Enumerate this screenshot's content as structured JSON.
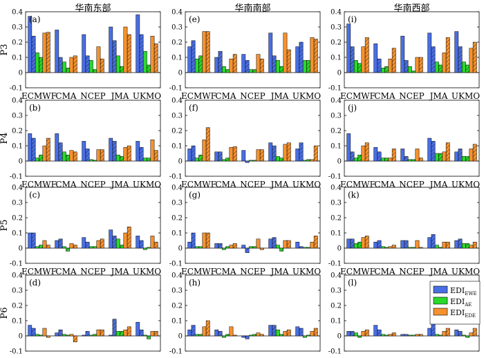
{
  "figure": {
    "column_titles": [
      "华南东部",
      "华南南部",
      "华南西部"
    ],
    "row_labels": [
      "P3",
      "P4",
      "P5",
      "P6"
    ]
  },
  "colors": {
    "EWE": "#4a6fe3",
    "AE": "#2bd92b",
    "EDE": "#f5922f"
  },
  "legend": {
    "items": [
      {
        "key": "EWE",
        "label_main": "EDI",
        "label_sub": "EWE"
      },
      {
        "key": "AE",
        "label_main": "EDI",
        "label_sub": "AE"
      },
      {
        "key": "EDE",
        "label_main": "EDI",
        "label_sub": "EDE"
      }
    ]
  },
  "chart_data": {
    "type": "bar",
    "categories": [
      "ECMWF",
      "CMA",
      "NCEP",
      "JMA",
      "UKMO"
    ],
    "ylim": [
      -0.1,
      0.4
    ],
    "yticks": [
      -0.1,
      0,
      0.1,
      0.2,
      0.3,
      0.4
    ],
    "ytick_labels": [
      "-0.1",
      "0",
      "0.1",
      "0.2",
      "0.3",
      "0.4"
    ],
    "bar_order": [
      "EWE-solid",
      "EWE-hatched",
      "AE-solid",
      "AE-hatched",
      "EDE-solid",
      "EDE-hatched"
    ],
    "panels": [
      {
        "label": "(a)",
        "row": 0,
        "col": 0,
        "values": [
          [
            0.37,
            0.24,
            0.13,
            0.1,
            0.26,
            0.265
          ],
          [
            0.28,
            0.1,
            0.07,
            0.03,
            0.1,
            0.11
          ],
          [
            0.25,
            0.11,
            0.08,
            0.02,
            0.17,
            0.09
          ],
          [
            0.3,
            0.21,
            0.11,
            0.04,
            0.3,
            0.25
          ],
          [
            0.38,
            0.25,
            0.14,
            0.05,
            0.24,
            0.19
          ]
        ]
      },
      {
        "label": "(e)",
        "row": 0,
        "col": 1,
        "values": [
          [
            0.17,
            0.21,
            0.09,
            0.11,
            0.27,
            0.27
          ],
          [
            0.1,
            0.14,
            0.04,
            0.02,
            0.09,
            0.12
          ],
          [
            0.12,
            0.08,
            0.02,
            0.02,
            0.12,
            0.09
          ],
          [
            0.26,
            0.11,
            0.08,
            0.04,
            0.26,
            0.15
          ],
          [
            0.17,
            0.2,
            0.08,
            0.08,
            0.23,
            0.22
          ]
        ]
      },
      {
        "label": "(i)",
        "row": 0,
        "col": 2,
        "values": [
          [
            0.32,
            0.17,
            0.08,
            0.06,
            0.17,
            0.23
          ],
          [
            0.19,
            0.09,
            0.03,
            0.04,
            0.09,
            0.16
          ],
          [
            0.24,
            0.08,
            0.04,
            0.01,
            0.1,
            0.1
          ],
          [
            0.26,
            0.17,
            0.07,
            0.05,
            0.13,
            0.23
          ],
          [
            0.27,
            0.17,
            0.07,
            0.05,
            0.16,
            0.2
          ]
        ]
      },
      {
        "label": "(b)",
        "row": 1,
        "col": 0,
        "values": [
          [
            0.18,
            0.15,
            0.02,
            0.04,
            0.1,
            0.15
          ],
          [
            0.18,
            0.12,
            0.06,
            0.04,
            0.07,
            0.06
          ],
          [
            0.13,
            0.08,
            0.01,
            0.005,
            0.075,
            0.075
          ],
          [
            0.15,
            0.13,
            0.04,
            0.03,
            0.09,
            0.1
          ],
          [
            0.13,
            0.09,
            0.02,
            0.02,
            0.14,
            0.07
          ]
        ]
      },
      {
        "label": "(f)",
        "row": 1,
        "col": 1,
        "values": [
          [
            0.08,
            0.1,
            0.02,
            0.04,
            0.14,
            0.22
          ],
          [
            0.06,
            0.06,
            0.01,
            0.02,
            0.09,
            0.095
          ],
          [
            0.07,
            -0.01,
            0.005,
            0.005,
            0.075,
            0.075
          ],
          [
            0.12,
            0.1,
            0.03,
            0.02,
            0.11,
            0.12
          ],
          [
            0.08,
            0.12,
            0.005,
            0.01,
            0.01,
            0.1
          ]
        ]
      },
      {
        "label": "(j)",
        "row": 1,
        "col": 2,
        "values": [
          [
            0.18,
            0.06,
            0.02,
            0.04,
            0.1,
            0.12
          ],
          [
            0.09,
            0.06,
            0.02,
            0.02,
            0.02,
            0.08
          ],
          [
            0.08,
            0.03,
            0.01,
            0.01,
            0.08,
            0.02
          ],
          [
            0.15,
            0.13,
            0.05,
            0.05,
            0.06,
            0.12
          ],
          [
            0.06,
            0.08,
            0.03,
            0.03,
            0.08,
            0.11
          ]
        ]
      },
      {
        "label": "(c)",
        "row": 2,
        "col": 0,
        "values": [
          [
            0.1,
            0.1,
            0.01,
            0.02,
            0.05,
            0.02
          ],
          [
            0.05,
            0.06,
            0.01,
            -0.02,
            0.03,
            0.02
          ],
          [
            0.07,
            0.04,
            0.01,
            0.01,
            0.05,
            0.06
          ],
          [
            0.12,
            0.08,
            0.06,
            0.02,
            0.1,
            0.14
          ],
          [
            0.08,
            0.05,
            -0.01,
            0.005,
            0.08,
            0.04
          ]
        ]
      },
      {
        "label": "(g)",
        "row": 2,
        "col": 1,
        "values": [
          [
            0.04,
            0.1,
            0.01,
            0.01,
            0.1,
            0.1
          ],
          [
            0.03,
            0.03,
            -0.01,
            0.01,
            0.02,
            0.03
          ],
          [
            0.02,
            -0.03,
            0.01,
            0.01,
            0.06,
            -0.01
          ],
          [
            0.06,
            0.07,
            0.02,
            -0.02,
            0.05,
            0.05
          ],
          [
            0.04,
            0.01,
            0.005,
            0.005,
            0.04,
            0.08
          ]
        ]
      },
      {
        "label": "(k)",
        "row": 2,
        "col": 2,
        "values": [
          [
            0.06,
            0.06,
            0.03,
            0.04,
            0.07,
            0.08
          ],
          [
            0.04,
            0.05,
            0.01,
            0.005,
            0.01,
            0.02
          ],
          [
            0.05,
            0.05,
            0.005,
            0.005,
            0.05,
            0.005
          ],
          [
            0.07,
            0.09,
            0.02,
            0.005,
            0.04,
            0.04
          ],
          [
            0.05,
            0.06,
            0.03,
            0.03,
            0.02,
            0.04
          ]
        ]
      },
      {
        "label": "(d)",
        "row": 3,
        "col": 0,
        "values": [
          [
            0.07,
            0.05,
            0.01,
            0.005,
            0.05,
            -0.01
          ],
          [
            0.02,
            0.04,
            0.01,
            0.005,
            0.01,
            -0.04
          ],
          [
            0.005,
            0.03,
            0.005,
            0.01,
            0.04,
            0.04
          ],
          [
            0.005,
            0.11,
            0.03,
            0.03,
            0.04,
            0.06
          ],
          [
            0.09,
            0.04,
            0.005,
            -0.02,
            0.03,
            0.03
          ]
        ]
      },
      {
        "label": "(h)",
        "row": 3,
        "col": 1,
        "values": [
          [
            0.04,
            0.07,
            0.01,
            0.01,
            0.06,
            0.1
          ],
          [
            0.04,
            0.03,
            -0.01,
            0.01,
            0.06,
            0.005
          ],
          [
            -0.01,
            -0.02,
            0.005,
            0.01,
            0.02,
            0.01
          ],
          [
            0.07,
            0.07,
            0.04,
            0.01,
            0.03,
            0.04
          ],
          [
            0.06,
            0.05,
            -0.01,
            0.005,
            0.03,
            0.05
          ]
        ]
      },
      {
        "label": "(l)",
        "row": 3,
        "col": 2,
        "values": [
          [
            0.03,
            0.03,
            0.02,
            -0.01,
            0.03,
            0.04
          ],
          [
            0.07,
            0.04,
            0.01,
            0.005,
            0.01,
            0.02
          ],
          [
            0.01,
            0.01,
            0.005,
            0.005,
            0.01,
            0.01
          ],
          [
            0.05,
            0.11,
            0.01,
            0.005,
            0.03,
            0.05
          ],
          [
            0.04,
            0.03,
            0.005,
            -0.01,
            0.02,
            0.05
          ]
        ]
      }
    ]
  }
}
